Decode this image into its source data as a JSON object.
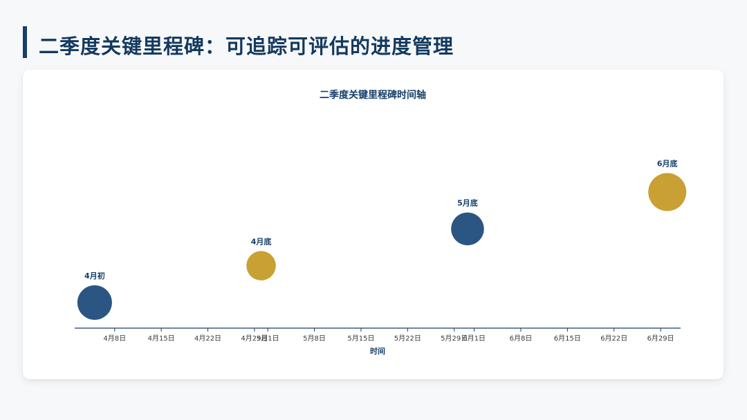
{
  "page": {
    "title": "二季度关键里程碑：可追踪可评估的进度管理"
  },
  "chart_data": {
    "type": "scatter",
    "title": "二季度关键里程碑时间轴",
    "xlabel": "时间",
    "ylabel": "",
    "x_type": "date",
    "xlim": [
      "2025-04-02",
      "2025-07-02"
    ],
    "ylim": [
      0,
      5
    ],
    "x_ticks": [
      {
        "date": "2025-04-08",
        "label": "4月8日"
      },
      {
        "date": "2025-04-15",
        "label": "4月15日"
      },
      {
        "date": "2025-04-22",
        "label": "4月22日"
      },
      {
        "date": "2025-04-29",
        "label": "4月29日"
      },
      {
        "date": "2025-05-01",
        "label": "5月1日"
      },
      {
        "date": "2025-05-08",
        "label": "5月8日"
      },
      {
        "date": "2025-05-15",
        "label": "5月15日"
      },
      {
        "date": "2025-05-22",
        "label": "5月22日"
      },
      {
        "date": "2025-05-29",
        "label": "5月29日"
      },
      {
        "date": "2025-06-01",
        "label": "6月1日"
      },
      {
        "date": "2025-06-08",
        "label": "6月8日"
      },
      {
        "date": "2025-06-15",
        "label": "6月15日"
      },
      {
        "date": "2025-06-22",
        "label": "6月22日"
      },
      {
        "date": "2025-06-29",
        "label": "6月29日"
      }
    ],
    "points": [
      {
        "label": "4月初",
        "x": "2025-04-05",
        "y": 1.0,
        "size": 1.0,
        "color": "#2b5583"
      },
      {
        "label": "4月底",
        "x": "2025-04-30",
        "y": 2.0,
        "size": 0.85,
        "color": "#c9a034"
      },
      {
        "label": "5月底",
        "x": "2025-05-31",
        "y": 3.0,
        "size": 0.95,
        "color": "#2b5583"
      },
      {
        "label": "6月底",
        "x": "2025-06-30",
        "y": 4.0,
        "size": 1.1,
        "color": "#c9a034"
      }
    ],
    "grid": false,
    "axis_color": "#173f69"
  }
}
